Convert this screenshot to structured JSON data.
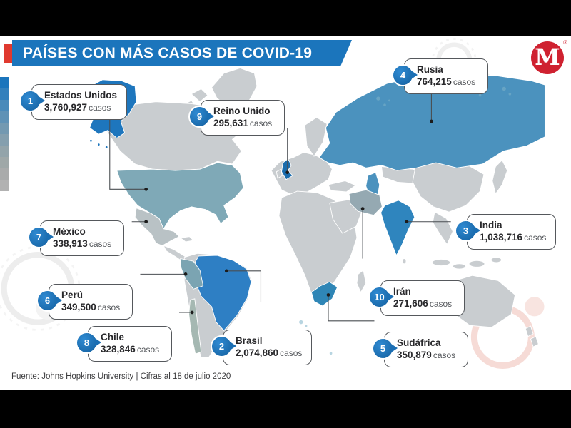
{
  "title": {
    "regular": "PAÍSES CON MÁS ",
    "bold": "CASOS DE COVID-19"
  },
  "logo": {
    "letter": "M",
    "registered": "®"
  },
  "source": "Fuente: Johns Hopkins University | Cifras al 18 de julio 2020",
  "labels": {
    "cases": "casos"
  },
  "countries": [
    {
      "rank": "1",
      "name": "Estados Unidos",
      "cases": "3,760,927"
    },
    {
      "rank": "2",
      "name": "Brasil",
      "cases": "2,074,860"
    },
    {
      "rank": "3",
      "name": "India",
      "cases": "1,038,716"
    },
    {
      "rank": "4",
      "name": "Rusia",
      "cases": "764,215"
    },
    {
      "rank": "5",
      "name": "Sudáfrica",
      "cases": "350,879"
    },
    {
      "rank": "6",
      "name": "Perú",
      "cases": "349,500"
    },
    {
      "rank": "7",
      "name": "México",
      "cases": "338,913"
    },
    {
      "rank": "8",
      "name": "Chile",
      "cases": "328,846"
    },
    {
      "rank": "9",
      "name": "Reino Unido",
      "cases": "295,631"
    },
    {
      "rank": "10",
      "name": "Irán",
      "cases": "271,606"
    }
  ],
  "legend": {
    "colors": [
      "#1b75bc",
      "#3380bc",
      "#4a8aba",
      "#5f92b6",
      "#7399b1",
      "#849fae",
      "#93a4aa",
      "#9fa8a8",
      "#a9abab",
      "#b2b2b2"
    ]
  },
  "colors": {
    "banner": "#1b75bc",
    "accent_red": "#e0392f",
    "logo_red": "#cf2130",
    "land": "#c9cdd0",
    "map": {
      "alaska": "#1e76bd",
      "usa": "#7fa9b7",
      "mexico": "#b9c2c5",
      "brazil": "#2e7fc4",
      "peru": "#7ba4b2",
      "chile": "#a5b8b2",
      "russia": "#4b92be",
      "uk": "#1a6cad",
      "iran": "#95a9b2",
      "india": "#2f85be",
      "south_africa": "#2f86b6",
      "caspian": "#4b92be"
    }
  },
  "chart_data": {
    "type": "table",
    "title": "Países con más casos de COVID-19",
    "columns": [
      "rank",
      "country",
      "cases"
    ],
    "rows": [
      [
        1,
        "Estados Unidos",
        3760927
      ],
      [
        2,
        "Brasil",
        2074860
      ],
      [
        3,
        "India",
        1038716
      ],
      [
        4,
        "Rusia",
        764215
      ],
      [
        5,
        "Sudáfrica",
        350879
      ],
      [
        6,
        "Perú",
        349500
      ],
      [
        7,
        "México",
        338913
      ],
      [
        8,
        "Chile",
        328846
      ],
      [
        9,
        "Reino Unido",
        295631
      ],
      [
        10,
        "Irán",
        271606
      ]
    ],
    "note": "Choropleth world map; color scale legend from blue (more cases) to gray (fewer)"
  }
}
